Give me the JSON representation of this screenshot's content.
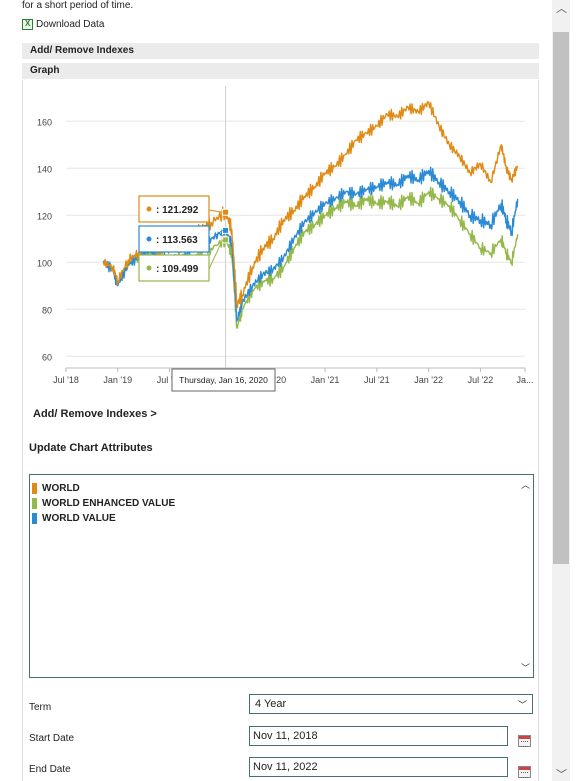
{
  "top_text": "for a short period of time.",
  "download_label": "Download Data",
  "bars": {
    "add_remove": "Add/ Remove Indexes",
    "graph": "Graph"
  },
  "chart_data": {
    "type": "line",
    "title": "",
    "xlabel": "",
    "ylabel": "",
    "ylim": [
      55,
      175
    ],
    "y_ticks": [
      60,
      80,
      100,
      120,
      140,
      160
    ],
    "x_ticks": [
      {
        "label": "Jul '18",
        "t": 2018.5
      },
      {
        "label": "Jan '19",
        "t": 2019.0
      },
      {
        "label": "Jul '19",
        "t": 2019.5
      },
      {
        "label": "Jan '20",
        "t": 2020.0
      },
      {
        "label": "Jul '20",
        "t": 2020.5
      },
      {
        "label": "Jan '21",
        "t": 2021.0
      },
      {
        "label": "Jul '21",
        "t": 2021.5
      },
      {
        "label": "Jan '22",
        "t": 2022.0
      },
      {
        "label": "Jul '22",
        "t": 2022.5
      },
      {
        "label": "Ja...",
        "t": 2022.93
      }
    ],
    "x": [
      2018.86,
      2018.95,
      2019.0,
      2019.1,
      2019.2,
      2019.3,
      2019.4,
      2019.5,
      2019.6,
      2019.7,
      2019.8,
      2019.9,
      2020.04,
      2020.1,
      2020.15,
      2020.2,
      2020.3,
      2020.4,
      2020.5,
      2020.6,
      2020.7,
      2020.8,
      2020.9,
      2021.0,
      2021.1,
      2021.2,
      2021.3,
      2021.4,
      2021.5,
      2021.6,
      2021.7,
      2021.8,
      2021.9,
      2022.0,
      2022.1,
      2022.2,
      2022.3,
      2022.4,
      2022.5,
      2022.6,
      2022.7,
      2022.75,
      2022.8,
      2022.86
    ],
    "series": [
      {
        "name": "WORLD",
        "color": "#e08a14",
        "values": [
          100,
          98,
          92,
          101,
          104,
          108,
          104,
          107,
          106,
          110,
          114,
          117,
          121.292,
          114,
          82,
          86,
          98,
          106,
          110,
          118,
          122,
          128,
          132,
          138,
          141,
          146,
          152,
          155,
          158,
          163,
          162,
          166,
          164,
          168,
          158,
          150,
          145,
          138,
          142,
          134,
          150,
          140,
          135,
          141
        ]
      },
      {
        "name": "WORLD ENHANCED VALUE",
        "color": "#94b84a",
        "values": [
          100,
          97,
          91,
          99,
          102,
          104,
          100,
          99,
          97,
          101,
          104,
          106,
          109.499,
          104,
          72,
          80,
          88,
          92,
          93,
          98,
          106,
          113,
          116,
          120,
          123,
          126,
          124,
          127,
          125,
          126,
          124,
          128,
          125,
          130,
          127,
          124,
          118,
          112,
          106,
          104,
          110,
          104,
          100,
          112
        ]
      },
      {
        "name": "WORLD VALUE",
        "color": "#2a8ad4",
        "values": [
          100,
          97,
          90,
          99,
          102,
          105,
          102,
          102,
          101,
          105,
          108,
          110,
          113.563,
          108,
          75,
          83,
          90,
          95,
          97,
          102,
          110,
          117,
          121,
          125,
          127,
          130,
          129,
          131,
          132,
          134,
          133,
          137,
          135,
          139,
          134,
          130,
          126,
          120,
          118,
          116,
          125,
          118,
          113,
          127
        ]
      }
    ],
    "tooltip": {
      "date": "Thursday, Jan 16, 2020",
      "t": 2020.04,
      "entries": [
        {
          "series": "WORLD",
          "value": ": 121.292",
          "color": "#e08a14"
        },
        {
          "series": "WORLD VALUE",
          "value": ": 113.563",
          "color": "#2a8ad4"
        },
        {
          "series": "WORLD ENHANCED VALUE",
          "value": ": 109.499",
          "color": "#94b84a"
        }
      ]
    },
    "grid": true,
    "legend": "none"
  },
  "add_remove_link": "Add/ Remove Indexes >",
  "update_title": "Update Chart Attributes",
  "legend_items": [
    {
      "label": "WORLD",
      "color": "#e08a14"
    },
    {
      "label": "WORLD ENHANCED VALUE",
      "color": "#94b84a"
    },
    {
      "label": "WORLD VALUE",
      "color": "#2a8ad4"
    }
  ],
  "form": {
    "term_label": "Term",
    "term_value": "4 Year",
    "start_label": "Start Date",
    "start_value": "Nov 11, 2018",
    "end_label": "End Date",
    "end_value": "Nov 11, 2022"
  }
}
